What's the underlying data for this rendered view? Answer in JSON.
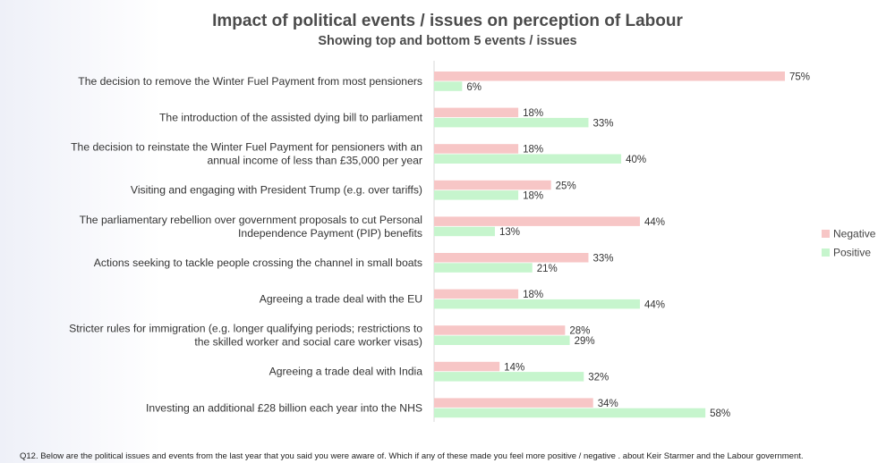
{
  "chart_data": {
    "type": "bar",
    "orientation": "horizontal",
    "title": "Impact of political events / issues on perception of Labour",
    "subtitle": "Showing top and bottom 5 events / issues",
    "categories": [
      [
        "The decision to remove the Winter Fuel Payment from most pensioners"
      ],
      [
        "The introduction of the assisted dying bill to parliament"
      ],
      [
        "The decision to reinstate the Winter Fuel Payment for pensioners with an",
        "annual income of less than £35,000 per year"
      ],
      [
        "Visiting and engaging with President Trump (e.g. over tariffs)"
      ],
      [
        "The parliamentary rebellion over government proposals to cut Personal",
        "Independence Payment (PIP) benefits"
      ],
      [
        "Actions seeking to tackle people crossing the channel in small boats"
      ],
      [
        "Agreeing a trade deal with the EU"
      ],
      [
        "Stricter rules for immigration (e.g. longer qualifying periods; restrictions to",
        "the skilled worker and social care worker visas)"
      ],
      [
        "Agreeing a trade deal with India"
      ],
      [
        "Investing an additional £28 billion each year into the NHS"
      ]
    ],
    "series": [
      {
        "name": "Negative",
        "color": "#f7c6c6",
        "values": [
          75,
          18,
          18,
          25,
          44,
          33,
          18,
          28,
          14,
          34
        ]
      },
      {
        "name": "Positive",
        "color": "#c6f5cd",
        "values": [
          6,
          33,
          40,
          18,
          13,
          21,
          44,
          29,
          32,
          58
        ]
      }
    ],
    "value_suffix": "%",
    "xlim": [
      0,
      75
    ],
    "legend_position": "right",
    "grid": false
  },
  "footnote": "Q12. Below are the political issues and events from the last year that you said you were aware of. Which if any of these made you feel  more positive / negative . about Keir Starmer and the Labour government."
}
